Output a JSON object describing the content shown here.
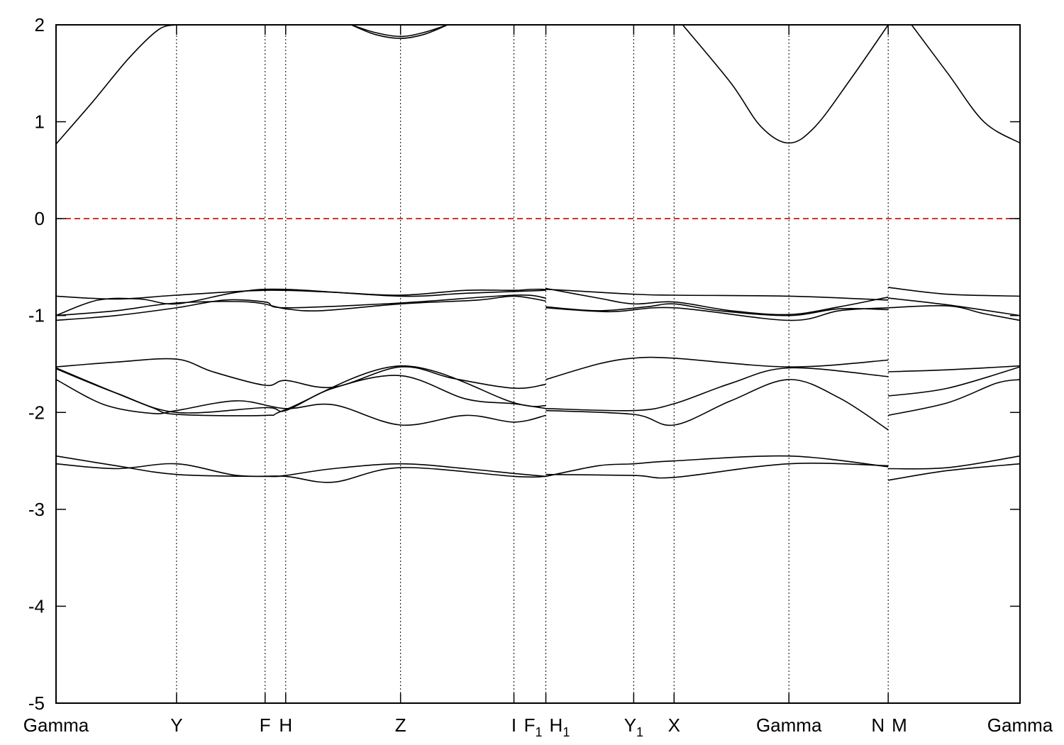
{
  "chart_data": {
    "type": "line",
    "title": "",
    "xlabel": "",
    "ylabel": "",
    "ylim": [
      -5,
      2
    ],
    "yticks": [
      2,
      1,
      0,
      -1,
      -2,
      -3,
      -4,
      -5
    ],
    "grid": "vertical dotted lines at high-symmetry points",
    "fermi_level": {
      "y": 0,
      "color": "#cc0000",
      "style": "dashed"
    },
    "kpoints": [
      {
        "label": "Gamma",
        "sub": "",
        "x": 0.0
      },
      {
        "label": "Y",
        "sub": "",
        "x": 1.0
      },
      {
        "label": "F",
        "sub": "",
        "x": 1.735
      },
      {
        "label": "H",
        "sub": "",
        "x": 1.906
      },
      {
        "label": "Z",
        "sub": "",
        "x": 2.859
      },
      {
        "label": "I",
        "sub": "",
        "x": 3.8
      },
      {
        "label": "F",
        "sub": "1",
        "x": 4.065
      },
      {
        "label": "H",
        "sub": "1",
        "x": 4.065
      },
      {
        "label": "Y",
        "sub": "1",
        "x": 4.794
      },
      {
        "label": "X",
        "sub": "",
        "x": 5.129
      },
      {
        "label": "Gamma",
        "sub": "",
        "x": 6.082
      },
      {
        "label": "N",
        "sub": "",
        "x": 6.906
      },
      {
        "label": "M",
        "sub": "",
        "x": 6.906
      },
      {
        "label": "Gamma",
        "sub": "",
        "x": 8.0
      }
    ],
    "series": [
      {
        "values": [
          [
            0,
            0.77
          ],
          [
            0.3,
            1.2
          ],
          [
            0.6,
            1.65
          ],
          [
            0.85,
            1.95
          ],
          [
            1.0,
            2.0
          ]
        ]
      },
      {
        "values": [
          [
            2.45,
            2.0
          ],
          [
            2.65,
            1.9
          ],
          [
            2.859,
            1.86
          ],
          [
            3.05,
            1.9
          ],
          [
            3.25,
            2.0
          ]
        ]
      },
      {
        "values": [
          [
            2.45,
            2.0
          ],
          [
            2.65,
            1.92
          ],
          [
            2.859,
            1.88
          ],
          [
            3.05,
            1.92
          ],
          [
            3.25,
            2.0
          ]
        ]
      },
      {
        "values": [
          [
            5.2,
            2.0
          ],
          [
            5.6,
            1.4
          ],
          [
            5.85,
            0.95
          ],
          [
            6.082,
            0.78
          ],
          [
            6.3,
            0.95
          ],
          [
            6.6,
            1.45
          ],
          [
            6.906,
            2.0
          ]
        ]
      },
      {
        "values": [
          [
            7.1,
            2.0
          ],
          [
            7.4,
            1.5
          ],
          [
            7.7,
            1.0
          ],
          [
            8.0,
            0.78
          ]
        ]
      },
      {
        "values": [
          [
            0,
            -0.8
          ],
          [
            0.5,
            -0.83
          ],
          [
            1.0,
            -0.79
          ],
          [
            1.735,
            -0.74
          ],
          [
            2.3,
            -0.76
          ],
          [
            2.859,
            -0.79
          ],
          [
            3.4,
            -0.74
          ],
          [
            3.8,
            -0.74
          ],
          [
            4.065,
            -0.73
          ],
          [
            4.794,
            -0.78
          ],
          [
            5.129,
            -0.79
          ],
          [
            6.082,
            -0.8
          ],
          [
            6.906,
            -0.84
          ]
        ]
      },
      {
        "values": [
          [
            0,
            -1.0
          ],
          [
            0.5,
            -0.95
          ],
          [
            1.0,
            -0.87
          ],
          [
            1.6,
            -0.86
          ],
          [
            1.906,
            -0.93
          ],
          [
            2.2,
            -0.95
          ],
          [
            2.859,
            -0.88
          ],
          [
            3.5,
            -0.84
          ],
          [
            3.8,
            -0.8
          ],
          [
            4.065,
            -0.85
          ]
        ]
      },
      {
        "values": [
          [
            0,
            -1.05
          ],
          [
            0.5,
            -1.0
          ],
          [
            1.0,
            -0.92
          ],
          [
            1.4,
            -0.84
          ],
          [
            1.735,
            -0.86
          ],
          [
            1.906,
            -0.92
          ],
          [
            2.859,
            -0.87
          ],
          [
            3.8,
            -0.79
          ],
          [
            4.065,
            -0.82
          ]
        ]
      },
      {
        "values": [
          [
            0,
            -1.0
          ],
          [
            0.35,
            -0.84
          ],
          [
            0.7,
            -0.83
          ],
          [
            1.0,
            -0.88
          ],
          [
            1.5,
            -0.76
          ],
          [
            1.906,
            -0.73
          ],
          [
            2.859,
            -0.8
          ],
          [
            3.4,
            -0.77
          ],
          [
            4.065,
            -0.74
          ]
        ]
      },
      {
        "values": [
          [
            4.065,
            -0.91
          ],
          [
            4.5,
            -0.95
          ],
          [
            4.9,
            -0.91
          ],
          [
            5.129,
            -0.88
          ],
          [
            5.5,
            -0.95
          ],
          [
            6.082,
            -1.0
          ],
          [
            6.5,
            -0.93
          ],
          [
            6.906,
            -0.94
          ]
        ]
      },
      {
        "values": [
          [
            4.065,
            -0.92
          ],
          [
            4.6,
            -0.96
          ],
          [
            5.129,
            -0.92
          ],
          [
            6.082,
            -1.05
          ],
          [
            6.5,
            -0.95
          ],
          [
            6.906,
            -0.92
          ]
        ]
      },
      {
        "values": [
          [
            4.065,
            -0.72
          ],
          [
            4.5,
            -0.82
          ],
          [
            4.794,
            -0.88
          ],
          [
            5.129,
            -0.86
          ],
          [
            5.6,
            -0.95
          ],
          [
            6.082,
            -0.99
          ],
          [
            6.5,
            -0.91
          ],
          [
            6.906,
            -0.81
          ]
        ]
      },
      {
        "values": [
          [
            6.906,
            -0.71
          ],
          [
            7.4,
            -0.78
          ],
          [
            8.0,
            -0.8
          ]
        ]
      },
      {
        "values": [
          [
            6.906,
            -0.82
          ],
          [
            7.4,
            -0.89
          ],
          [
            8.0,
            -1.0
          ]
        ]
      },
      {
        "values": [
          [
            6.906,
            -0.92
          ],
          [
            7.4,
            -0.9
          ],
          [
            7.7,
            -0.98
          ],
          [
            8.0,
            -1.05
          ]
        ]
      },
      {
        "values": [
          [
            0,
            -1.53
          ],
          [
            0.5,
            -1.48
          ],
          [
            1.0,
            -1.45
          ],
          [
            1.3,
            -1.58
          ],
          [
            1.735,
            -1.72
          ],
          [
            1.906,
            -1.67
          ],
          [
            2.3,
            -1.74
          ],
          [
            2.859,
            -1.53
          ],
          [
            3.3,
            -1.65
          ],
          [
            3.8,
            -1.75
          ],
          [
            4.065,
            -1.71
          ]
        ]
      },
      {
        "values": [
          [
            0,
            -1.54
          ],
          [
            0.4,
            -1.75
          ],
          [
            0.8,
            -1.95
          ],
          [
            1.0,
            -2.02
          ],
          [
            1.735,
            -2.03
          ],
          [
            1.906,
            -1.97
          ],
          [
            2.859,
            -1.52
          ],
          [
            3.8,
            -1.9
          ],
          [
            4.065,
            -1.93
          ]
        ]
      },
      {
        "values": [
          [
            0,
            -1.66
          ],
          [
            0.4,
            -1.92
          ],
          [
            0.8,
            -2.01
          ],
          [
            1.0,
            -1.98
          ],
          [
            1.5,
            -1.88
          ],
          [
            1.906,
            -1.96
          ],
          [
            2.3,
            -1.92
          ],
          [
            2.859,
            -2.13
          ],
          [
            3.4,
            -2.03
          ],
          [
            3.8,
            -2.1
          ],
          [
            4.065,
            -2.03
          ]
        ]
      },
      {
        "values": [
          [
            0,
            -1.55
          ],
          [
            0.5,
            -1.8
          ],
          [
            1.0,
            -2.0
          ],
          [
            1.735,
            -1.95
          ],
          [
            1.906,
            -1.98
          ],
          [
            2.3,
            -1.75
          ],
          [
            2.859,
            -1.62
          ],
          [
            3.4,
            -1.86
          ],
          [
            3.8,
            -1.91
          ],
          [
            4.065,
            -1.96
          ]
        ]
      },
      {
        "values": [
          [
            4.065,
            -1.66
          ],
          [
            4.5,
            -1.5
          ],
          [
            4.794,
            -1.44
          ],
          [
            5.129,
            -1.44
          ],
          [
            6.082,
            -1.53
          ],
          [
            6.906,
            -1.46
          ]
        ]
      },
      {
        "values": [
          [
            4.065,
            -1.96
          ],
          [
            4.794,
            -1.98
          ],
          [
            5.129,
            -1.91
          ],
          [
            5.6,
            -1.7
          ],
          [
            6.082,
            -1.54
          ],
          [
            6.906,
            -1.63
          ]
        ]
      },
      {
        "values": [
          [
            4.065,
            -1.98
          ],
          [
            4.794,
            -2.02
          ],
          [
            5.129,
            -2.13
          ],
          [
            5.6,
            -1.88
          ],
          [
            6.082,
            -1.66
          ],
          [
            6.5,
            -1.85
          ],
          [
            6.906,
            -2.18
          ]
        ]
      },
      {
        "values": [
          [
            6.906,
            -1.58
          ],
          [
            7.4,
            -1.56
          ],
          [
            8.0,
            -1.52
          ]
        ]
      },
      {
        "values": [
          [
            6.906,
            -1.83
          ],
          [
            7.4,
            -1.75
          ],
          [
            8.0,
            -1.53
          ]
        ]
      },
      {
        "values": [
          [
            6.906,
            -2.03
          ],
          [
            7.4,
            -1.9
          ],
          [
            7.8,
            -1.7
          ],
          [
            8.0,
            -1.66
          ]
        ]
      },
      {
        "values": [
          [
            0,
            -2.45
          ],
          [
            0.5,
            -2.55
          ],
          [
            1.0,
            -2.64
          ],
          [
            1.735,
            -2.66
          ],
          [
            1.906,
            -2.65
          ],
          [
            2.3,
            -2.58
          ],
          [
            2.859,
            -2.53
          ],
          [
            3.4,
            -2.58
          ],
          [
            3.8,
            -2.63
          ],
          [
            4.065,
            -2.66
          ]
        ]
      },
      {
        "values": [
          [
            0,
            -2.53
          ],
          [
            0.5,
            -2.58
          ],
          [
            1.0,
            -2.53
          ],
          [
            1.5,
            -2.65
          ],
          [
            1.906,
            -2.66
          ],
          [
            2.3,
            -2.72
          ],
          [
            2.859,
            -2.57
          ],
          [
            3.8,
            -2.66
          ],
          [
            4.065,
            -2.66
          ]
        ]
      },
      {
        "values": [
          [
            4.065,
            -2.64
          ],
          [
            4.794,
            -2.65
          ],
          [
            5.129,
            -2.67
          ],
          [
            6.082,
            -2.53
          ],
          [
            6.906,
            -2.55
          ]
        ]
      },
      {
        "values": [
          [
            4.065,
            -2.66
          ],
          [
            4.5,
            -2.55
          ],
          [
            4.794,
            -2.53
          ],
          [
            5.129,
            -2.5
          ],
          [
            6.082,
            -2.45
          ],
          [
            6.906,
            -2.56
          ]
        ]
      },
      {
        "values": [
          [
            6.906,
            -2.58
          ],
          [
            7.4,
            -2.57
          ],
          [
            8.0,
            -2.45
          ]
        ]
      },
      {
        "values": [
          [
            6.906,
            -2.7
          ],
          [
            7.4,
            -2.6
          ],
          [
            8.0,
            -2.53
          ]
        ]
      }
    ]
  }
}
